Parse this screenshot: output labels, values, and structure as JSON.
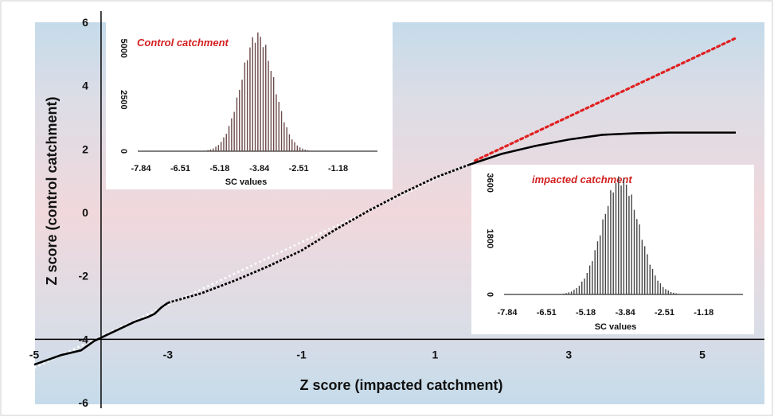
{
  "chart_data": {
    "type": "line",
    "xlabel": "Z score (impacted  catchment)",
    "ylabel": "Z score (control catchment)",
    "xlim": [
      -5,
      5.6
    ],
    "ylim": [
      -6,
      6
    ],
    "x_ticks": [
      "-5",
      "-3",
      "-1",
      "1",
      "3",
      "5"
    ],
    "y_ticks": [
      "-6",
      "-4",
      "-2",
      "0",
      "2",
      "4",
      "6"
    ],
    "colors": {
      "observed": "#000000",
      "reference": "#e02020"
    },
    "series": [
      {
        "style": "solid-black",
        "x": [
          -5.0,
          -4.6,
          -4.3,
          -4.1,
          -3.9,
          -3.7,
          -3.5,
          -3.3,
          -3.2,
          -3.1,
          -3.0,
          -2.5,
          -2.0,
          -1.5,
          -1.0,
          -0.5,
          0.0,
          0.5,
          1.0,
          1.5,
          2.0,
          2.5,
          3.0,
          3.5,
          4.0,
          4.5,
          5.0,
          5.5
        ],
        "y": [
          -4.8,
          -4.5,
          -4.35,
          -4.05,
          -3.85,
          -3.65,
          -3.45,
          -3.3,
          -3.2,
          -3.0,
          -2.85,
          -2.55,
          -2.15,
          -1.7,
          -1.2,
          -0.55,
          0.05,
          0.6,
          1.1,
          1.5,
          1.85,
          2.1,
          2.3,
          2.45,
          2.5,
          2.52,
          2.52,
          2.52
        ]
      },
      {
        "style": "dotted-reference",
        "x": [
          -5.0,
          5.5
        ],
        "y": [
          -4.9,
          5.5
        ]
      }
    ],
    "insets": [
      {
        "title": "Control catchment",
        "xlabel": "SC values",
        "x_ticks": [
          "-7.84",
          "-6.51",
          "-5.18",
          "-3.84",
          "-2.51",
          "-1.18"
        ],
        "y_ticks": [
          "0",
          "2500",
          "5000"
        ],
        "ymax": 5800,
        "peak": 5600,
        "center": -3.9,
        "sigma": 0.55
      },
      {
        "title": "impacted catchment",
        "xlabel": "SC values",
        "x_ticks": [
          "-7.84",
          "-6.51",
          "-5.18",
          "-3.84",
          "-2.51",
          "-1.18"
        ],
        "y_ticks": [
          "0",
          "1800",
          "3600"
        ],
        "ymax": 3800,
        "peak": 3700,
        "center": -4.0,
        "sigma": 0.62
      }
    ]
  }
}
